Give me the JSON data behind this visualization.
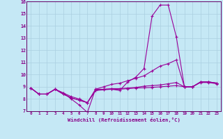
{
  "xlabel": "Windchill (Refroidissement éolien,°C)",
  "x_hours": [
    0,
    1,
    2,
    3,
    4,
    5,
    6,
    7,
    8,
    9,
    10,
    11,
    12,
    13,
    14,
    15,
    16,
    17,
    18,
    19,
    20,
    21,
    22,
    23
  ],
  "line1": [
    8.9,
    8.4,
    8.4,
    8.8,
    8.5,
    8.0,
    7.5,
    6.9,
    8.8,
    8.8,
    8.8,
    8.7,
    9.4,
    9.8,
    10.5,
    14.8,
    15.7,
    15.7,
    13.1,
    9.0,
    9.0,
    9.4,
    9.4,
    9.3
  ],
  "line2": [
    8.9,
    8.4,
    8.4,
    8.8,
    8.5,
    8.2,
    8.0,
    7.7,
    8.8,
    9.0,
    9.2,
    9.3,
    9.5,
    9.7,
    9.9,
    10.3,
    10.7,
    10.9,
    11.2,
    9.0,
    9.0,
    9.4,
    9.4,
    9.3
  ],
  "line3": [
    8.9,
    8.4,
    8.4,
    8.8,
    8.4,
    8.1,
    7.9,
    7.7,
    8.7,
    8.8,
    8.85,
    8.85,
    8.9,
    8.95,
    9.05,
    9.1,
    9.15,
    9.25,
    9.35,
    9.0,
    9.0,
    9.4,
    9.4,
    9.3
  ],
  "line4": [
    8.9,
    8.4,
    8.4,
    8.8,
    8.4,
    8.1,
    7.9,
    7.7,
    8.7,
    8.75,
    8.8,
    8.8,
    8.85,
    8.9,
    8.92,
    8.95,
    9.0,
    9.05,
    9.1,
    9.0,
    9.0,
    9.35,
    9.35,
    9.25
  ],
  "line_color": "#990099",
  "bg_color": "#c5e8f5",
  "grid_color": "#aacfe0",
  "tick_label_color": "#880088",
  "axis_line_color": "#660066",
  "ylim": [
    7,
    16
  ],
  "yticks": [
    7,
    8,
    9,
    10,
    11,
    12,
    13,
    14,
    15,
    16
  ]
}
